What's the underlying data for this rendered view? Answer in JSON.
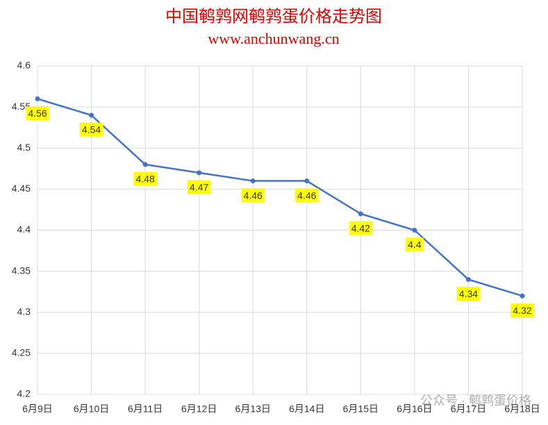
{
  "chart_data": {
    "type": "line",
    "title": "中国鹌鹑网鹌鹑蛋价格走势图",
    "subtitle": "www.anchunwang.cn",
    "categories": [
      "6月9日",
      "6月10日",
      "6月11日",
      "6月12日",
      "6月13日",
      "6月14日",
      "6月15日",
      "6月16日",
      "6月17日",
      "6月18日"
    ],
    "values": [
      4.56,
      4.54,
      4.48,
      4.47,
      4.46,
      4.46,
      4.42,
      4.4,
      4.34,
      4.32
    ],
    "color": "#4472c4",
    "label_color": "#ffff00",
    "ylim": [
      4.2,
      4.6
    ],
    "yticks": [
      4.2,
      4.25,
      4.3,
      4.35,
      4.4,
      4.45,
      4.5,
      4.55,
      4.6
    ],
    "grid": true,
    "watermark": "公众号 · 鹌鹑蛋价格"
  }
}
